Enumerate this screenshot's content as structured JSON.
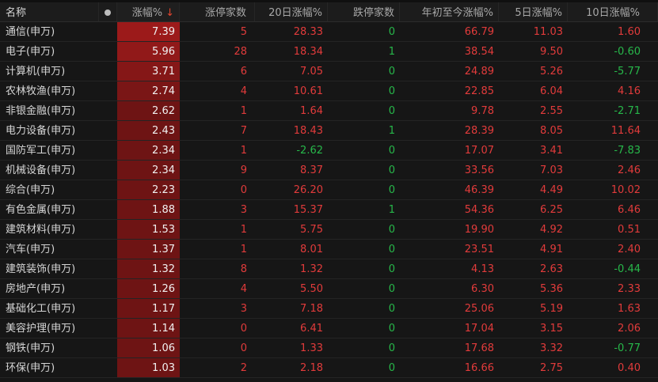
{
  "header": {
    "name": "名称",
    "dot_icon": "circle-dot-icon",
    "change_pct": "涨幅%",
    "sort_icon": "↓",
    "limit_up_count": "涨停家数",
    "change_20d": "20日涨幅%",
    "limit_down_count": "跌停家数",
    "change_ytd": "年初至今涨幅%",
    "change_5d": "5日涨幅%",
    "change_10d": "10日涨幅%"
  },
  "colors": {
    "up": "#e23b3b",
    "down": "#27b84a",
    "highlight_top": "#9c1a1a",
    "highlight_bottom": "#6e1414"
  },
  "rows": [
    {
      "name": "通信(申万)",
      "chg": "7.39",
      "lu": "5",
      "d20": "28.33",
      "ld": "0",
      "ytd": "66.79",
      "d5": "11.03",
      "d10": "1.60"
    },
    {
      "name": "电子(申万)",
      "chg": "5.96",
      "lu": "28",
      "d20": "18.34",
      "ld": "1",
      "ytd": "38.54",
      "d5": "9.50",
      "d10": "-0.60"
    },
    {
      "name": "计算机(申万)",
      "chg": "3.71",
      "lu": "6",
      "d20": "7.05",
      "ld": "0",
      "ytd": "24.89",
      "d5": "5.26",
      "d10": "-5.77"
    },
    {
      "name": "农林牧渔(申万)",
      "chg": "2.74",
      "lu": "4",
      "d20": "10.61",
      "ld": "0",
      "ytd": "22.85",
      "d5": "6.04",
      "d10": "4.16"
    },
    {
      "name": "非银金融(申万)",
      "chg": "2.62",
      "lu": "1",
      "d20": "1.64",
      "ld": "0",
      "ytd": "9.78",
      "d5": "2.55",
      "d10": "-2.71"
    },
    {
      "name": "电力设备(申万)",
      "chg": "2.43",
      "lu": "7",
      "d20": "18.43",
      "ld": "1",
      "ytd": "28.39",
      "d5": "8.05",
      "d10": "11.64"
    },
    {
      "name": "国防军工(申万)",
      "chg": "2.34",
      "lu": "1",
      "d20": "-2.62",
      "ld": "0",
      "ytd": "17.07",
      "d5": "3.41",
      "d10": "-7.83"
    },
    {
      "name": "机械设备(申万)",
      "chg": "2.34",
      "lu": "9",
      "d20": "8.37",
      "ld": "0",
      "ytd": "33.56",
      "d5": "7.03",
      "d10": "2.46"
    },
    {
      "name": "综合(申万)",
      "chg": "2.23",
      "lu": "0",
      "d20": "26.20",
      "ld": "0",
      "ytd": "46.39",
      "d5": "4.49",
      "d10": "10.02"
    },
    {
      "name": "有色金属(申万)",
      "chg": "1.88",
      "lu": "3",
      "d20": "15.37",
      "ld": "1",
      "ytd": "54.36",
      "d5": "6.25",
      "d10": "6.46"
    },
    {
      "name": "建筑材料(申万)",
      "chg": "1.53",
      "lu": "1",
      "d20": "5.75",
      "ld": "0",
      "ytd": "19.90",
      "d5": "4.92",
      "d10": "0.51"
    },
    {
      "name": "汽车(申万)",
      "chg": "1.37",
      "lu": "1",
      "d20": "8.01",
      "ld": "0",
      "ytd": "23.51",
      "d5": "4.91",
      "d10": "2.40"
    },
    {
      "name": "建筑装饰(申万)",
      "chg": "1.32",
      "lu": "8",
      "d20": "1.32",
      "ld": "0",
      "ytd": "4.13",
      "d5": "2.63",
      "d10": "-0.44"
    },
    {
      "name": "房地产(申万)",
      "chg": "1.26",
      "lu": "4",
      "d20": "5.50",
      "ld": "0",
      "ytd": "6.30",
      "d5": "5.36",
      "d10": "2.33"
    },
    {
      "name": "基础化工(申万)",
      "chg": "1.17",
      "lu": "3",
      "d20": "7.18",
      "ld": "0",
      "ytd": "25.06",
      "d5": "5.19",
      "d10": "1.63"
    },
    {
      "name": "美容护理(申万)",
      "chg": "1.14",
      "lu": "0",
      "d20": "6.41",
      "ld": "0",
      "ytd": "17.04",
      "d5": "3.15",
      "d10": "2.06"
    },
    {
      "name": "钢铁(申万)",
      "chg": "1.06",
      "lu": "0",
      "d20": "1.33",
      "ld": "0",
      "ytd": "17.68",
      "d5": "3.32",
      "d10": "-0.77"
    },
    {
      "name": "环保(申万)",
      "chg": "1.03",
      "lu": "2",
      "d20": "2.18",
      "ld": "0",
      "ytd": "16.66",
      "d5": "2.75",
      "d10": "0.40"
    }
  ]
}
